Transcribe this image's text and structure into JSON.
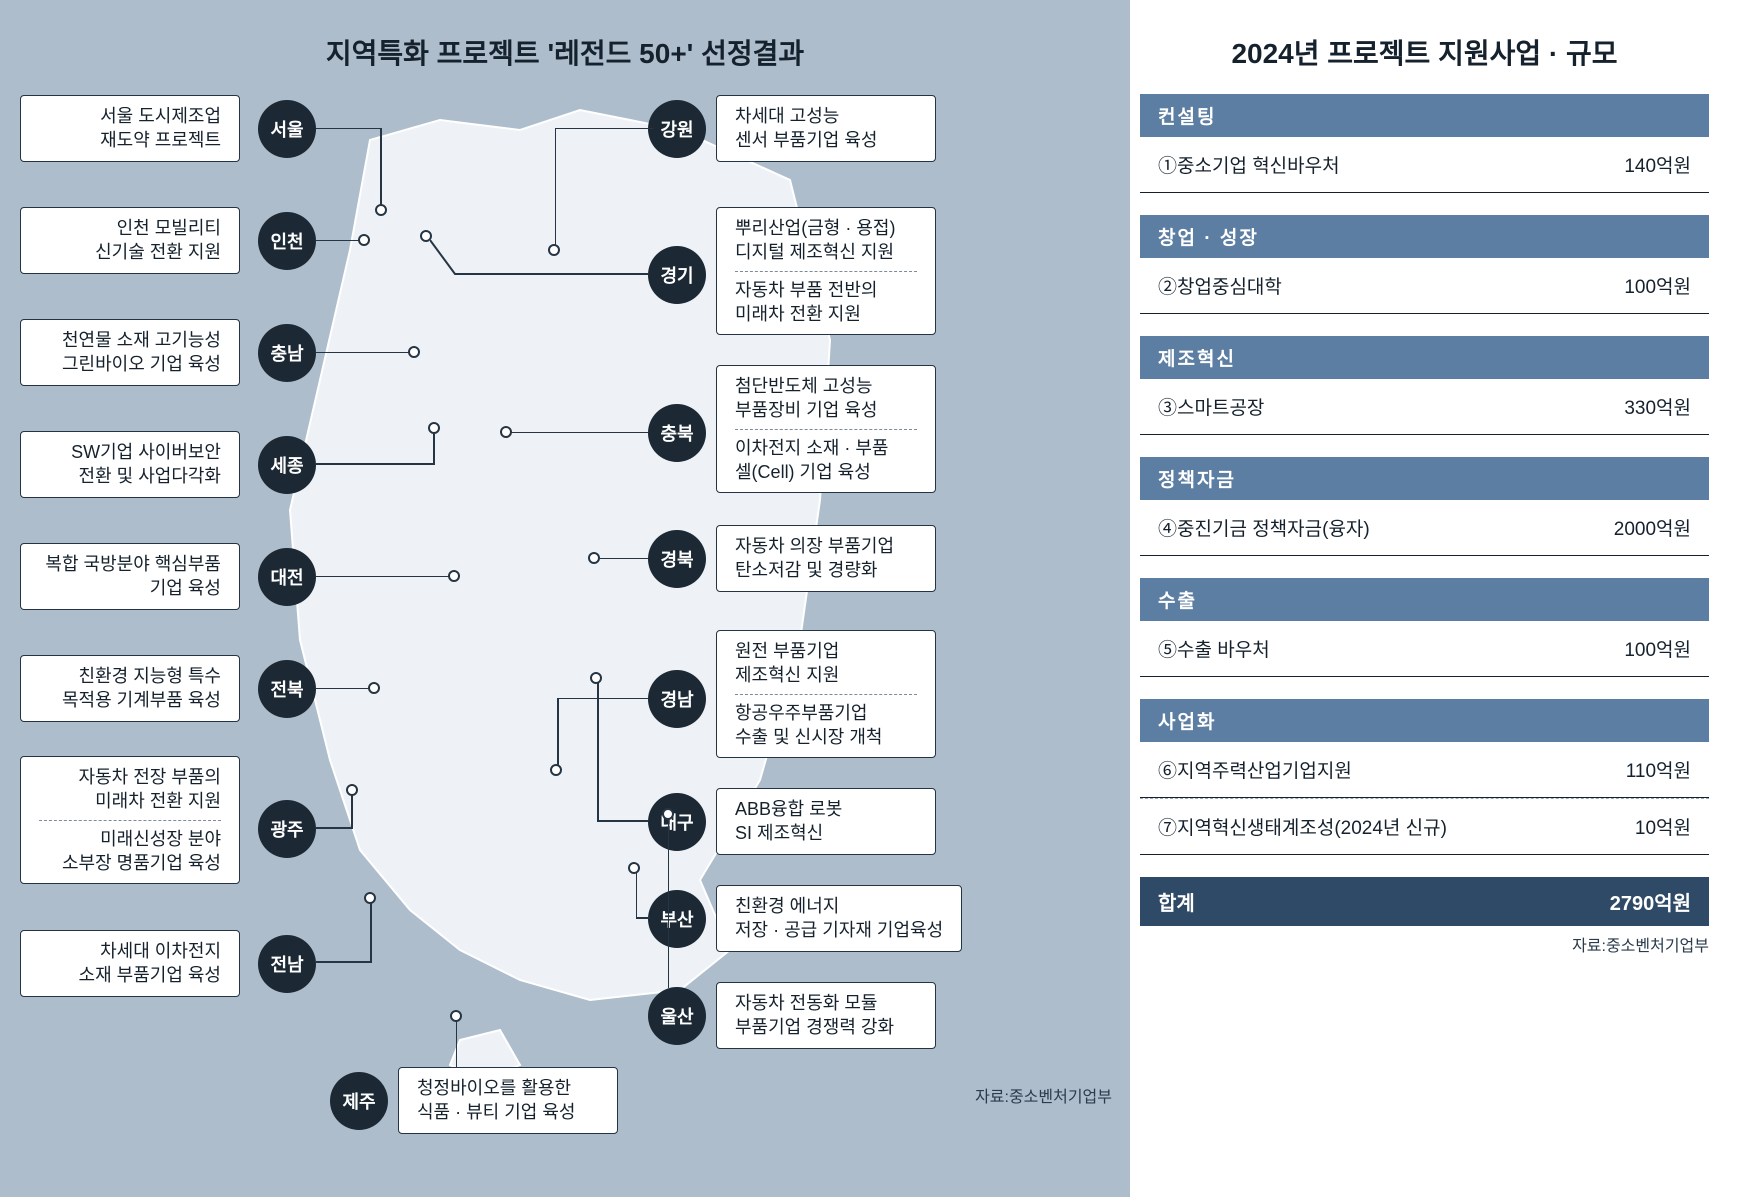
{
  "colors": {
    "page_bg": "#ffffff",
    "map_bg": "#aebdcc",
    "land_fill": "#eef2f6",
    "land_stroke": "#ffffff",
    "text_dark": "#15212d",
    "badge_bg": "#1c2935",
    "badge_text": "#ffffff",
    "callout_bg": "#ffffff",
    "callout_border": "#243444",
    "pin_border": "#263544",
    "cat_header_bg": "#5c7ea2",
    "cat_header_text": "#ffffff",
    "total_bg": "#2e4a66",
    "total_text": "#ffffff",
    "divider": "#15212d",
    "dash": "#9aa7b4"
  },
  "map": {
    "title": "지역특화 프로젝트 '레전드 50+' 선정결과",
    "source": "자료:중소벤처기업부",
    "title_fontsize": 28,
    "source_fontsize": 16,
    "callout_fontsize": 18,
    "badge_fontsize": 18,
    "regions_left": [
      {
        "badge": "서울",
        "l1": "서울 도시제조업",
        "l2": "재도약 프로젝트"
      },
      {
        "badge": "인천",
        "l1": "인천 모빌리티",
        "l2": "신기술 전환 지원"
      },
      {
        "badge": "충남",
        "l1": "천연물 소재 고기능성",
        "l2": "그린바이오 기업 육성"
      },
      {
        "badge": "세종",
        "l1": "SW기업 사이버보안",
        "l2": "전환 및 사업다각화"
      },
      {
        "badge": "대전",
        "l1": "복합 국방분야 핵심부품",
        "l2": "기업 육성"
      },
      {
        "badge": "전북",
        "l1": "친환경 지능형 특수",
        "l2": "목적용 기계부품 육성"
      },
      {
        "badge": "광주",
        "l1": "자동차 전장 부품의",
        "l2": "미래차 전환 지원",
        "l3": "미래신성장 분야",
        "l4": "소부장 명품기업 육성"
      },
      {
        "badge": "전남",
        "l1": "차세대 이차전지",
        "l2": "소재 부품기업 육성"
      },
      {
        "badge": "제주",
        "l1": "청정바이오를 활용한",
        "l2": "식품 · 뷰티 기업 육성"
      }
    ],
    "regions_right": [
      {
        "badge": "강원",
        "l1": "차세대 고성능",
        "l2": "센서 부품기업 육성"
      },
      {
        "badge": "경기",
        "l1": "뿌리산업(금형 · 용접)",
        "l2": "디지털 제조혁신 지원",
        "l3": "자동차 부품 전반의",
        "l4": "미래차 전환 지원"
      },
      {
        "badge": "충북",
        "l1": "첨단반도체 고성능",
        "l2": "부품장비 기업 육성",
        "l3": "이차전지 소재 · 부품",
        "l4": "셀(Cell) 기업 육성"
      },
      {
        "badge": "경북",
        "l1": "자동차 의장 부품기업",
        "l2": "탄소저감 및 경량화"
      },
      {
        "badge": "경남",
        "l1": "원전 부품기업",
        "l2": "제조혁신 지원",
        "l3": "항공우주부품기업",
        "l4": "수출 및 신시장 개척"
      },
      {
        "badge": "대구",
        "l1": "ABB융합 로봇",
        "l2": "SI 제조혁신"
      },
      {
        "badge": "부산",
        "l1": "친환경 에너지",
        "l2": "저장 · 공급 기자재 기업육성"
      },
      {
        "badge": "울산",
        "l1": "자동차 전동화 모듈",
        "l2": "부품기업 경쟁력 강화"
      }
    ]
  },
  "side": {
    "title": "2024년 프로젝트 지원사업 · 규모",
    "title_fontsize": 28,
    "row_fontsize": 19,
    "header_fontsize": 19,
    "categories": [
      {
        "name": "컨설팅",
        "rows": [
          {
            "label": "①중소기업 혁신바우처",
            "value": "140억원"
          }
        ]
      },
      {
        "name": "창업 · 성장",
        "rows": [
          {
            "label": "②창업중심대학",
            "value": "100억원"
          }
        ]
      },
      {
        "name": "제조혁신",
        "rows": [
          {
            "label": "③스마트공장",
            "value": "330억원"
          }
        ]
      },
      {
        "name": "정책자금",
        "rows": [
          {
            "label": "④중진기금 정책자금(융자)",
            "value": "2000억원"
          }
        ]
      },
      {
        "name": "수출",
        "rows": [
          {
            "label": "⑤수출 바우처",
            "value": "100억원"
          }
        ]
      },
      {
        "name": "사업화",
        "rows": [
          {
            "label": "⑥지역주력산업기업지원",
            "value": "110억원"
          },
          {
            "label": "⑦지역혁신생태계조성(2024년 신규)",
            "value": "10억원"
          }
        ]
      }
    ],
    "total": {
      "label": "합계",
      "value": "2790억원"
    },
    "source": "자료:중소벤처기업부"
  }
}
